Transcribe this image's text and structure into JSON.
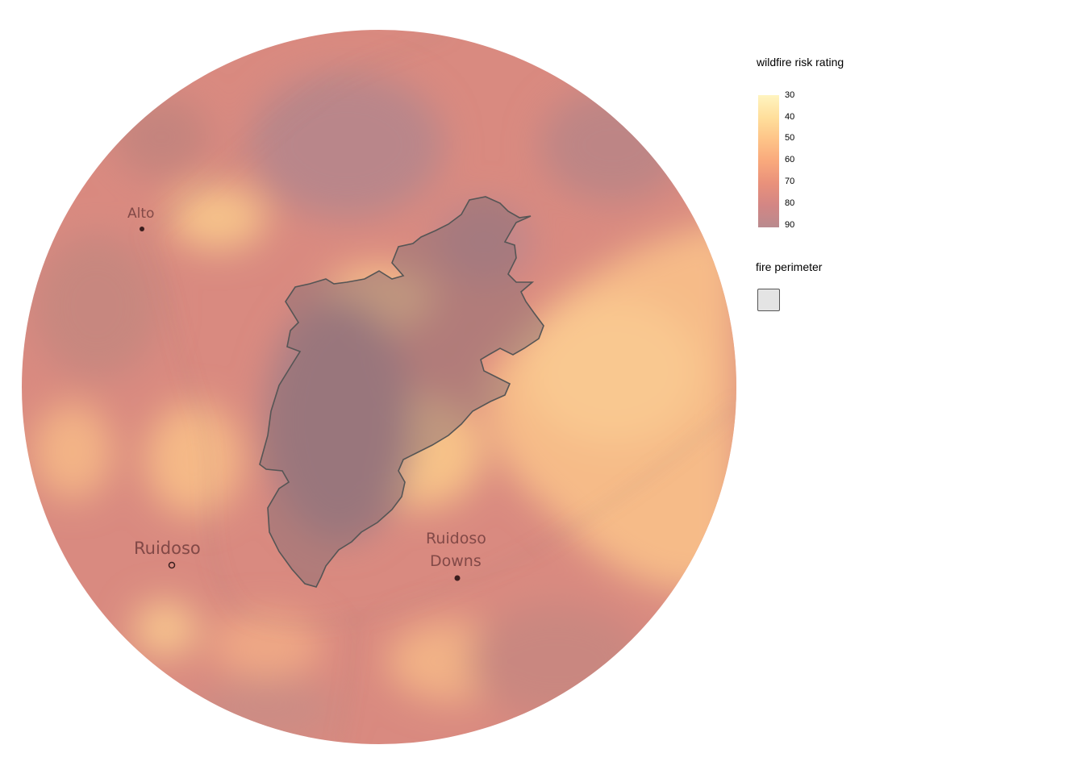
{
  "legend": {
    "risk_title": "wildfire risk rating",
    "risk_ticks": [
      "30",
      "40",
      "50",
      "60",
      "70",
      "80",
      "90"
    ],
    "risk_colors": [
      "#fff4c0",
      "#ffdf9c",
      "#fec488",
      "#f9a97c",
      "#e9917b",
      "#d38684",
      "#b98a8e"
    ],
    "perimeter_title": "fire perimeter"
  },
  "map": {
    "places": [
      {
        "name": "Alto",
        "marker": "filled"
      },
      {
        "name": "Ruidoso",
        "marker": "ring"
      },
      {
        "name": "Ruidoso",
        "marker": "filled",
        "line2": "Downs"
      }
    ]
  }
}
